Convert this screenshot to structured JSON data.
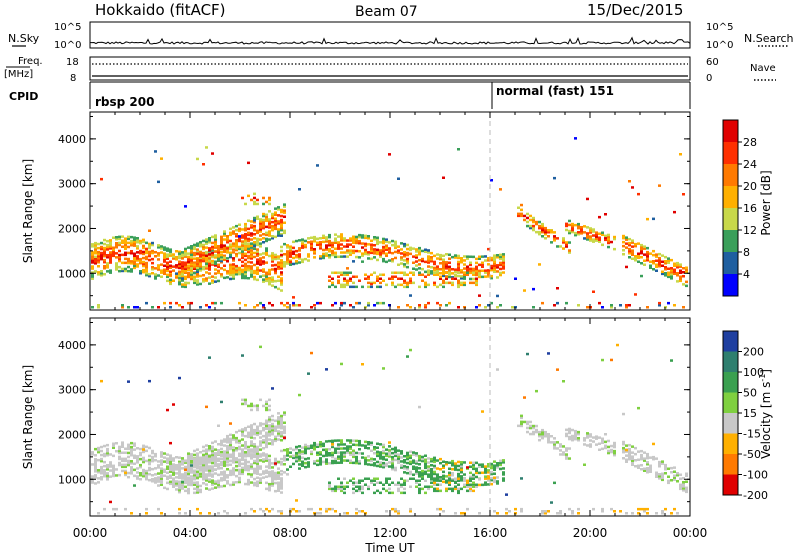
{
  "header": {
    "radar": "Hokkaido (fitACF)",
    "beam": "Beam 07",
    "date": "15/Dec/2015"
  },
  "strip": {
    "nsky_label": "N.Sky",
    "nsearch_label": "N.Search",
    "noise_tick_top": "10^5",
    "noise_tick_bottom": "10^0",
    "noise_tick_top_right": "10^5",
    "noise_tick_bottom_right": "10^0",
    "freq_label_1": "Freq.",
    "freq_label_2": "[MHz]",
    "freq_tick_top": "18",
    "freq_tick_bottom": "8",
    "nave_label": "Nave",
    "nave_tick_top": "60",
    "nave_tick_bottom": "0",
    "cpid_label": "CPID",
    "cpid_left": "rbsp 200",
    "cpid_right": "normal (fast) 151"
  },
  "chart_data": [
    {
      "type": "heatmap",
      "name": "power",
      "ylabel": "Slant Range [km]",
      "xlabel": "",
      "y_ticks": [
        "4000",
        "3000",
        "2000",
        "1000"
      ],
      "x_ticks": [],
      "ylim": [
        180,
        4600
      ],
      "xlim_hours": [
        0,
        24
      ],
      "colorbar": {
        "label": "Power [dB]",
        "ticks": [
          "28",
          "24",
          "20",
          "16",
          "12",
          "8",
          "4"
        ],
        "colors": [
          "#e00000",
          "#ff3000",
          "#ff7a00",
          "#ffb000",
          "#c8d84a",
          "#3a9f5a",
          "#1f5fa0",
          "#0000ff"
        ]
      },
      "mode_change_hour": 16.0
    },
    {
      "type": "heatmap",
      "name": "velocity",
      "ylabel": "Slant Range [km]",
      "xlabel": "Time UT",
      "y_ticks": [
        "4000",
        "3000",
        "2000",
        "1000"
      ],
      "x_ticks": [
        "00:00",
        "04:00",
        "08:00",
        "12:00",
        "16:00",
        "20:00",
        "00:00"
      ],
      "ylim": [
        180,
        4600
      ],
      "xlim_hours": [
        0,
        24
      ],
      "colorbar": {
        "label": "Velocity [m s",
        "label_sup": "-1",
        "label_end": "]",
        "ticks": [
          "200",
          "100",
          "50",
          "15",
          "-15",
          "-50",
          "-100",
          "-200"
        ],
        "colors": [
          "#1f3fa0",
          "#2f7f6f",
          "#3aa050",
          "#7fd040",
          "#c8c8c8",
          "#ffb000",
          "#ff7a00",
          "#e00000"
        ]
      },
      "mode_change_hour": 16.0
    }
  ]
}
